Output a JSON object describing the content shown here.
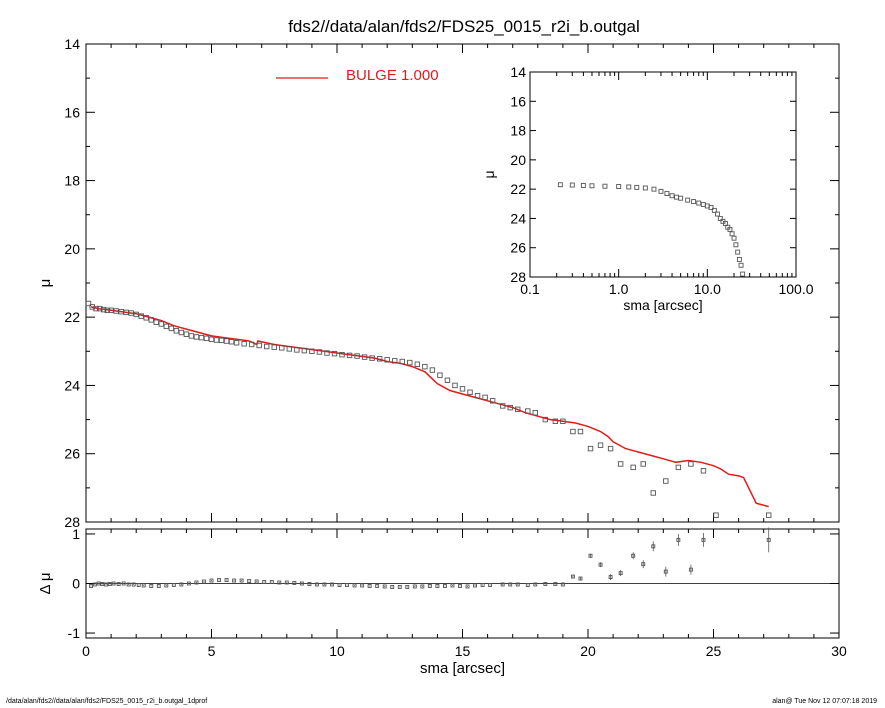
{
  "title": "fds2//data/alan/fds2/FDS25_0015_r2i_b.outgal",
  "footer": {
    "left": "/data/alan/fds2//data/alan/fds2/FDS25_0015_r2i_b.outgal_1dprof",
    "right": "alan@  Tue Nov 12 07:07:18 2019"
  },
  "colors": {
    "model": "#e31a1c",
    "data": "#555555",
    "axis": "#000000"
  },
  "chart_data": [
    {
      "id": "main",
      "type": "scatter",
      "xlabel": "",
      "ylabel": "μ",
      "xlim": [
        0,
        30
      ],
      "ylim": [
        28,
        14
      ],
      "xticks": [
        0,
        5,
        10,
        15,
        20,
        25,
        30
      ],
      "yticks": [
        14,
        16,
        18,
        20,
        22,
        24,
        26,
        28
      ],
      "legend": {
        "label": "BULGE  1.000",
        "placement": "top-center",
        "color": "#e31a1c"
      },
      "series": [
        {
          "kind": "line",
          "color": "#e31a1c",
          "x": [
            0.2,
            0.5,
            1.0,
            1.5,
            2.0,
            2.5,
            3.0,
            3.5,
            4.0,
            4.5,
            5.0,
            5.5,
            6.0,
            6.5,
            6.8,
            6.85,
            7.5,
            8.0,
            8.5,
            9.0,
            9.5,
            10.0,
            10.5,
            11.0,
            11.5,
            12.0,
            12.5,
            13.0,
            13.5,
            14.0,
            14.5,
            15.0,
            15.5,
            16.0,
            16.5,
            17.0,
            17.5,
            18.0,
            18.5,
            19.0,
            19.5,
            20.0,
            20.5,
            20.8,
            21.0,
            21.5,
            22.0,
            22.5,
            23.0,
            23.5,
            24.0,
            24.5,
            25.0,
            25.3,
            25.6,
            26.0,
            26.2,
            26.7,
            27.2
          ],
          "y": [
            21.7,
            21.75,
            21.8,
            21.85,
            21.9,
            22.0,
            22.1,
            22.25,
            22.35,
            22.45,
            22.55,
            22.6,
            22.65,
            22.7,
            22.8,
            22.7,
            22.8,
            22.85,
            22.9,
            22.95,
            23.0,
            23.05,
            23.1,
            23.15,
            23.2,
            23.3,
            23.35,
            23.45,
            23.6,
            23.95,
            24.15,
            24.25,
            24.35,
            24.45,
            24.55,
            24.65,
            24.8,
            24.9,
            25.0,
            25.05,
            25.1,
            25.2,
            25.35,
            25.5,
            25.65,
            25.85,
            25.95,
            26.05,
            26.15,
            26.25,
            26.2,
            26.25,
            26.35,
            26.45,
            26.6,
            26.65,
            26.7,
            27.45,
            27.55
          ]
        },
        {
          "kind": "points",
          "color": "#555555",
          "marker": "square",
          "x": [
            0.1,
            0.25,
            0.4,
            0.55,
            0.7,
            0.85,
            1.0,
            1.2,
            1.4,
            1.6,
            1.8,
            2.0,
            2.2,
            2.4,
            2.6,
            2.8,
            3.0,
            3.2,
            3.4,
            3.6,
            3.8,
            4.0,
            4.2,
            4.4,
            4.6,
            4.8,
            5.0,
            5.2,
            5.4,
            5.6,
            5.8,
            6.0,
            6.3,
            6.6,
            6.9,
            7.2,
            7.5,
            7.8,
            8.1,
            8.4,
            8.7,
            9.0,
            9.3,
            9.6,
            9.9,
            10.2,
            10.5,
            10.8,
            11.1,
            11.4,
            11.7,
            12.0,
            12.3,
            12.6,
            12.9,
            13.2,
            13.5,
            13.8,
            14.1,
            14.4,
            14.7,
            15.0,
            15.3,
            15.6,
            15.9,
            16.2,
            16.6,
            16.9,
            17.2,
            17.6,
            17.9,
            18.3,
            18.7,
            19.0,
            19.4,
            19.7,
            20.1,
            20.5,
            20.9,
            21.3,
            21.8,
            22.2,
            22.6,
            23.1,
            23.6,
            24.1,
            24.6,
            25.1,
            27.2
          ],
          "y": [
            21.6,
            21.7,
            21.75,
            21.75,
            21.78,
            21.8,
            21.8,
            21.82,
            21.84,
            21.86,
            21.88,
            21.92,
            21.97,
            22.02,
            22.08,
            22.15,
            22.2,
            22.27,
            22.33,
            22.4,
            22.45,
            22.5,
            22.55,
            22.58,
            22.6,
            22.62,
            22.65,
            22.67,
            22.68,
            22.7,
            22.72,
            22.75,
            22.78,
            22.8,
            22.83,
            22.86,
            22.88,
            22.9,
            22.93,
            22.96,
            22.98,
            23.0,
            23.02,
            23.05,
            23.07,
            23.1,
            23.12,
            23.14,
            23.17,
            23.2,
            23.22,
            23.25,
            23.28,
            23.3,
            23.33,
            23.38,
            23.45,
            23.55,
            23.7,
            23.85,
            24.0,
            24.1,
            24.2,
            24.3,
            24.35,
            24.45,
            24.6,
            24.65,
            24.7,
            24.75,
            24.8,
            25.0,
            25.05,
            25.05,
            25.35,
            25.35,
            25.85,
            25.75,
            25.85,
            26.3,
            26.4,
            26.3,
            27.15,
            26.8,
            26.4,
            26.3,
            26.5,
            27.8,
            27.8
          ]
        }
      ]
    },
    {
      "id": "inset",
      "type": "scatter",
      "xscale": "log",
      "xlabel": "sma [arcsec]",
      "ylabel": "μ",
      "xlim": [
        0.1,
        100
      ],
      "ylim": [
        28,
        14
      ],
      "xticks": [
        "0.1",
        "1.0",
        "10.0",
        "100.0"
      ],
      "yticks": [
        14,
        16,
        18,
        20,
        22,
        24,
        26,
        28
      ],
      "series": [
        {
          "kind": "points",
          "color": "#555555",
          "marker": "square",
          "x": [
            0.22,
            0.3,
            0.4,
            0.5,
            0.7,
            1.0,
            1.3,
            1.6,
            2.0,
            2.5,
            3.0,
            3.5,
            4.0,
            4.5,
            5.0,
            6.0,
            7.0,
            8.0,
            9.0,
            10.0,
            11.0,
            12.0,
            13.0,
            14.0,
            15.0,
            16.0,
            17.0,
            18.0,
            19.0,
            20.0,
            21.0,
            22.0,
            23.0,
            24.0,
            25.0
          ],
          "y": [
            21.7,
            21.72,
            21.75,
            21.77,
            21.8,
            21.82,
            21.85,
            21.88,
            21.92,
            22.0,
            22.15,
            22.3,
            22.45,
            22.55,
            22.62,
            22.75,
            22.85,
            22.95,
            23.05,
            23.15,
            23.25,
            23.45,
            23.7,
            24.0,
            24.2,
            24.35,
            24.6,
            24.75,
            25.05,
            25.35,
            25.8,
            26.3,
            26.8,
            27.2,
            27.8
          ]
        }
      ]
    },
    {
      "id": "residual",
      "type": "scatter",
      "xlabel": "sma [arcsec]",
      "ylabel": "Δ μ",
      "xlim": [
        0,
        30
      ],
      "ylim": [
        -1.1,
        1.1
      ],
      "xticks": [
        0,
        5,
        10,
        15,
        20,
        25,
        30
      ],
      "yticks": [
        -1,
        0,
        1
      ],
      "series": [
        {
          "kind": "points",
          "color": "#555555",
          "marker": "square",
          "x": [
            0.2,
            0.35,
            0.5,
            0.65,
            0.8,
            0.95,
            1.1,
            1.3,
            1.5,
            1.7,
            1.9,
            2.1,
            2.3,
            2.6,
            2.9,
            3.2,
            3.5,
            3.8,
            4.1,
            4.4,
            4.7,
            5.0,
            5.3,
            5.6,
            5.9,
            6.2,
            6.5,
            6.8,
            7.1,
            7.4,
            7.7,
            8.0,
            8.3,
            8.6,
            8.9,
            9.2,
            9.5,
            9.8,
            10.1,
            10.4,
            10.7,
            11.0,
            11.3,
            11.6,
            11.9,
            12.2,
            12.5,
            12.8,
            13.1,
            13.4,
            13.7,
            14.0,
            14.3,
            14.6,
            14.9,
            15.2,
            15.5,
            15.8,
            16.1,
            16.6,
            16.9,
            17.2,
            17.6,
            17.9,
            18.3,
            18.7,
            19.0,
            19.4,
            19.7,
            20.1,
            20.5,
            20.9,
            21.3,
            21.8,
            22.2,
            22.6,
            23.1,
            23.6,
            24.1,
            24.6,
            27.2
          ],
          "y": [
            -0.05,
            -0.02,
            0.0,
            -0.01,
            -0.02,
            -0.01,
            0.0,
            -0.01,
            0.0,
            -0.02,
            -0.02,
            -0.03,
            -0.04,
            -0.05,
            -0.05,
            -0.04,
            -0.03,
            -0.02,
            0.0,
            0.02,
            0.04,
            0.06,
            0.07,
            0.07,
            0.06,
            0.06,
            0.05,
            0.04,
            0.03,
            0.03,
            0.02,
            0.02,
            0.01,
            0.0,
            -0.01,
            -0.02,
            -0.02,
            -0.02,
            -0.03,
            -0.03,
            -0.04,
            -0.04,
            -0.05,
            -0.05,
            -0.06,
            -0.07,
            -0.07,
            -0.07,
            -0.06,
            -0.06,
            -0.05,
            -0.05,
            -0.05,
            -0.04,
            -0.05,
            -0.06,
            -0.04,
            -0.03,
            -0.03,
            -0.02,
            -0.02,
            -0.02,
            -0.03,
            -0.02,
            -0.01,
            -0.01,
            -0.02,
            0.14,
            0.1,
            0.56,
            0.38,
            0.13,
            0.21,
            0.56,
            0.39,
            0.75,
            0.24,
            0.88,
            0.28,
            0.88,
            0.88
          ],
          "err": [
            0.01,
            0.01,
            0.01,
            0.01,
            0.01,
            0.01,
            0.01,
            0.01,
            0.01,
            0.01,
            0.01,
            0.01,
            0.01,
            0.01,
            0.01,
            0.01,
            0.01,
            0.01,
            0.01,
            0.01,
            0.01,
            0.01,
            0.01,
            0.01,
            0.01,
            0.01,
            0.01,
            0.01,
            0.01,
            0.01,
            0.01,
            0.01,
            0.01,
            0.01,
            0.01,
            0.01,
            0.01,
            0.01,
            0.01,
            0.01,
            0.01,
            0.01,
            0.01,
            0.01,
            0.01,
            0.01,
            0.01,
            0.01,
            0.01,
            0.01,
            0.01,
            0.01,
            0.01,
            0.01,
            0.01,
            0.01,
            0.01,
            0.01,
            0.01,
            0.01,
            0.01,
            0.01,
            0.01,
            0.01,
            0.01,
            0.01,
            0.01,
            0.02,
            0.03,
            0.04,
            0.05,
            0.06,
            0.06,
            0.07,
            0.08,
            0.1,
            0.1,
            0.12,
            0.1,
            0.14,
            0.25
          ]
        }
      ]
    }
  ]
}
